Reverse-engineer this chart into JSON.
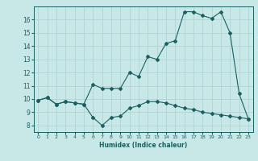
{
  "xlabel": "Humidex (Indice chaleur)",
  "background_color": "#c8e8e8",
  "grid_color": "#b0d4d4",
  "line_color": "#1a6060",
  "series1_x": [
    0,
    1,
    2,
    3,
    4,
    5,
    6,
    7,
    8,
    9,
    10,
    11,
    12,
    13,
    14,
    15,
    16,
    17,
    18,
    19,
    20,
    21,
    22,
    23
  ],
  "series1_y": [
    9.9,
    10.1,
    9.6,
    9.8,
    9.7,
    9.6,
    8.6,
    8.0,
    8.6,
    8.7,
    9.3,
    9.5,
    9.8,
    9.8,
    9.7,
    9.5,
    9.3,
    9.2,
    9.0,
    8.9,
    8.8,
    8.7,
    8.6,
    8.5
  ],
  "series2_x": [
    0,
    1,
    2,
    3,
    4,
    5,
    6,
    7,
    8,
    9,
    10,
    11,
    12,
    13,
    14,
    15,
    16,
    17,
    18,
    19,
    20,
    21,
    22,
    23
  ],
  "series2_y": [
    9.9,
    10.1,
    9.6,
    9.8,
    9.7,
    9.6,
    11.1,
    10.8,
    10.8,
    10.8,
    12.0,
    11.7,
    13.2,
    13.0,
    14.2,
    14.4,
    16.6,
    16.6,
    16.3,
    16.1,
    16.6,
    15.0,
    10.4,
    8.5
  ],
  "xlim": [
    -0.5,
    23.5
  ],
  "ylim": [
    7.5,
    17.0
  ],
  "yticks": [
    8,
    9,
    10,
    11,
    12,
    13,
    14,
    15,
    16
  ],
  "xticks": [
    0,
    1,
    2,
    3,
    4,
    5,
    6,
    7,
    8,
    9,
    10,
    11,
    12,
    13,
    14,
    15,
    16,
    17,
    18,
    19,
    20,
    21,
    22,
    23
  ]
}
